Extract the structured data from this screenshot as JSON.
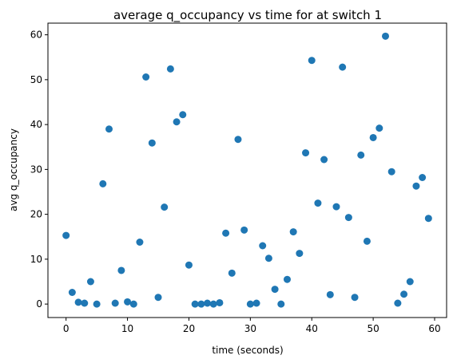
{
  "chart_data": {
    "type": "scatter",
    "title": "average q_occupancy vs time for at switch 1",
    "xlabel": "time (seconds)",
    "ylabel": "avg q_occupancy",
    "xlim": [
      -2.95,
      61.95
    ],
    "ylim": [
      -3.0,
      62.6
    ],
    "xticks": [
      "0",
      "10",
      "20",
      "30",
      "40",
      "50",
      "60"
    ],
    "yticks": [
      "0",
      "10",
      "20",
      "30",
      "40",
      "50",
      "60"
    ],
    "grid": false,
    "marker_color": "#1f77b4",
    "x": [
      0,
      1,
      2,
      3,
      4,
      5,
      6,
      7,
      8,
      9,
      10,
      11,
      12,
      13,
      14,
      15,
      16,
      17,
      18,
      19,
      20,
      21,
      22,
      23,
      24,
      25,
      26,
      27,
      28,
      29,
      30,
      31,
      32,
      33,
      34,
      35,
      36,
      37,
      38,
      39,
      40,
      41,
      42,
      43,
      44,
      45,
      46,
      47,
      48,
      49,
      50,
      51,
      52,
      53,
      54,
      55,
      56,
      57,
      58,
      59
    ],
    "y": [
      15.3,
      2.6,
      0.4,
      0.2,
      5.0,
      0.0,
      26.8,
      39.0,
      0.2,
      7.5,
      0.5,
      0.0,
      13.8,
      50.6,
      35.9,
      1.5,
      21.6,
      52.4,
      40.6,
      42.2,
      8.7,
      0.0,
      0.0,
      0.2,
      0.0,
      0.3,
      15.8,
      6.9,
      36.7,
      16.5,
      0.0,
      0.2,
      13.0,
      10.2,
      3.3,
      0.0,
      5.5,
      16.1,
      11.3,
      33.7,
      54.3,
      22.5,
      32.2,
      2.1,
      21.7,
      52.8,
      19.3,
      1.5,
      33.2,
      14.0,
      37.1,
      39.2,
      59.7,
      29.5,
      0.2,
      2.2,
      5.0,
      26.3,
      28.2,
      19.1
    ]
  }
}
